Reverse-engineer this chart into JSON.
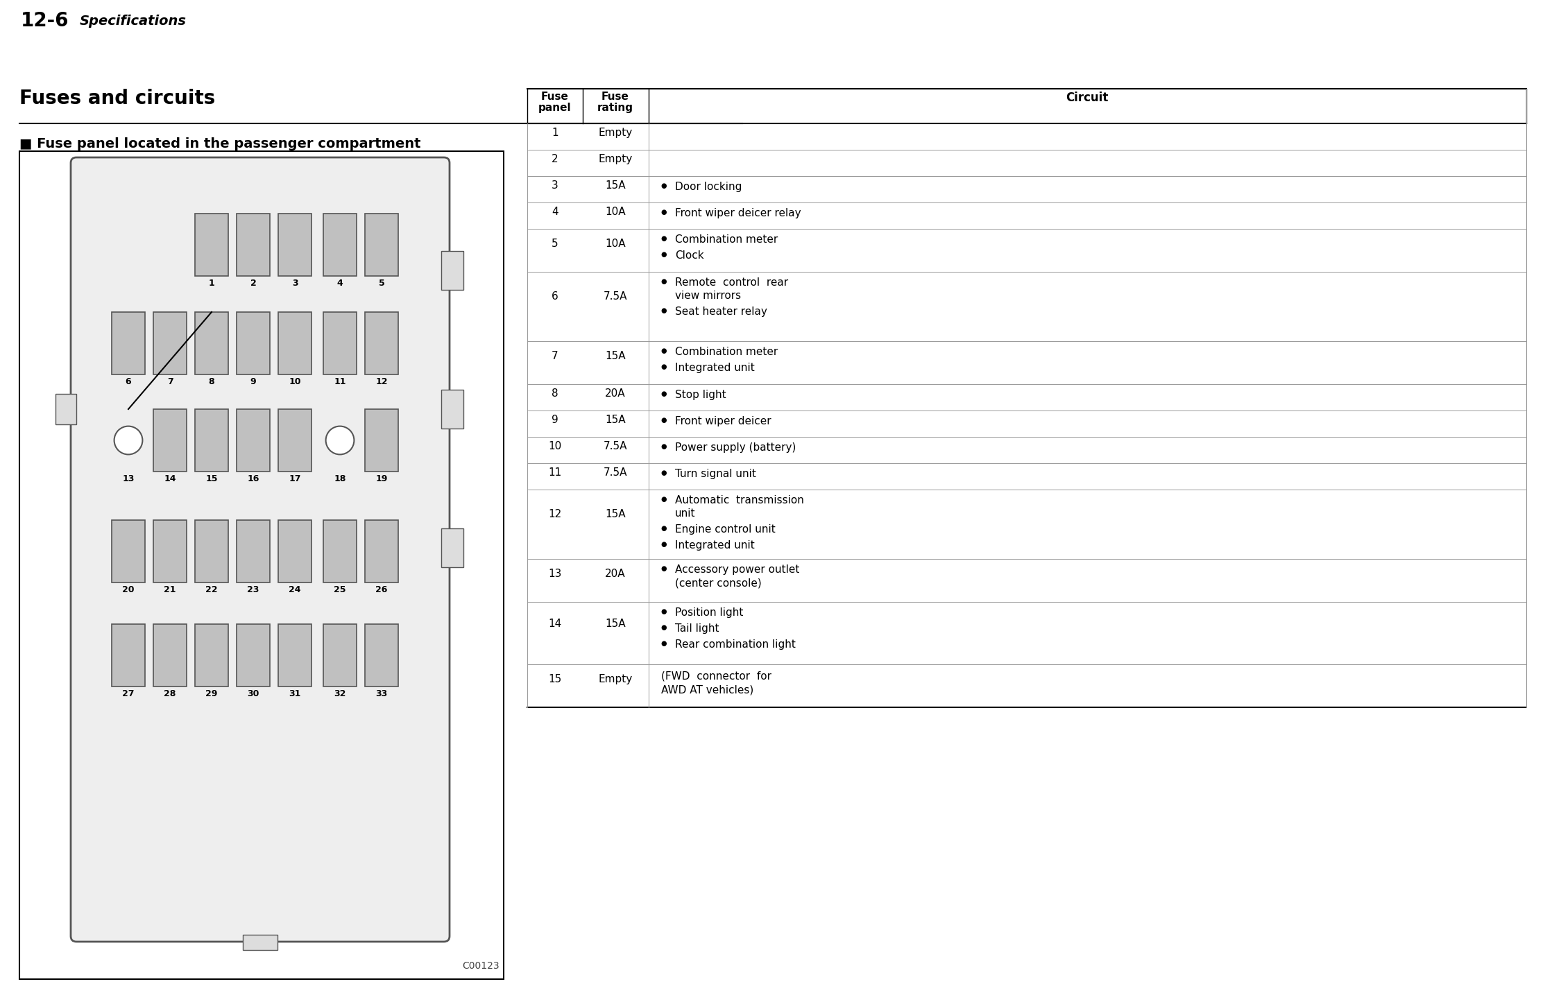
{
  "page_header": "12-6",
  "page_header_italic": "Specifications",
  "header_bg": "#d3d3d3",
  "title": "Fuses and circuits",
  "subtitle": "■ Fuse panel located in the passenger compartment",
  "diagram_code": "C00123",
  "bg_color": "#ffffff",
  "fuse_color": "#c0c0c0",
  "table_rows": [
    {
      "num": "1",
      "rating": "Empty",
      "circuits": [],
      "has_bullet": false
    },
    {
      "num": "2",
      "rating": "Empty",
      "circuits": [],
      "has_bullet": false
    },
    {
      "num": "3",
      "rating": "15A",
      "circuits": [
        "Door locking"
      ],
      "has_bullet": true
    },
    {
      "num": "4",
      "rating": "10A",
      "circuits": [
        "Front wiper deicer relay"
      ],
      "has_bullet": true
    },
    {
      "num": "5",
      "rating": "10A",
      "circuits": [
        "Combination meter",
        "Clock"
      ],
      "has_bullet": true
    },
    {
      "num": "6",
      "rating": "7.5A",
      "circuits": [
        "Remote  control  rear\nview mirrors",
        "Seat heater relay"
      ],
      "has_bullet": true
    },
    {
      "num": "7",
      "rating": "15A",
      "circuits": [
        "Combination meter",
        "Integrated unit"
      ],
      "has_bullet": true
    },
    {
      "num": "8",
      "rating": "20A",
      "circuits": [
        "Stop light"
      ],
      "has_bullet": true
    },
    {
      "num": "9",
      "rating": "15A",
      "circuits": [
        "Front wiper deicer"
      ],
      "has_bullet": true
    },
    {
      "num": "10",
      "rating": "7.5A",
      "circuits": [
        "Power supply (battery)"
      ],
      "has_bullet": true
    },
    {
      "num": "11",
      "rating": "7.5A",
      "circuits": [
        "Turn signal unit"
      ],
      "has_bullet": true
    },
    {
      "num": "12",
      "rating": "15A",
      "circuits": [
        "Automatic  transmission\nunit",
        "Engine control unit",
        "Integrated unit"
      ],
      "has_bullet": true
    },
    {
      "num": "13",
      "rating": "20A",
      "circuits": [
        "Accessory power outlet\n(center console)"
      ],
      "has_bullet": true
    },
    {
      "num": "14",
      "rating": "15A",
      "circuits": [
        "Position light",
        "Tail light",
        "Rear combination light"
      ],
      "has_bullet": true
    },
    {
      "num": "15",
      "rating": "Empty",
      "circuits": [
        "(FWD  connector  for\nAWD AT vehicles)"
      ],
      "has_bullet": false
    }
  ]
}
